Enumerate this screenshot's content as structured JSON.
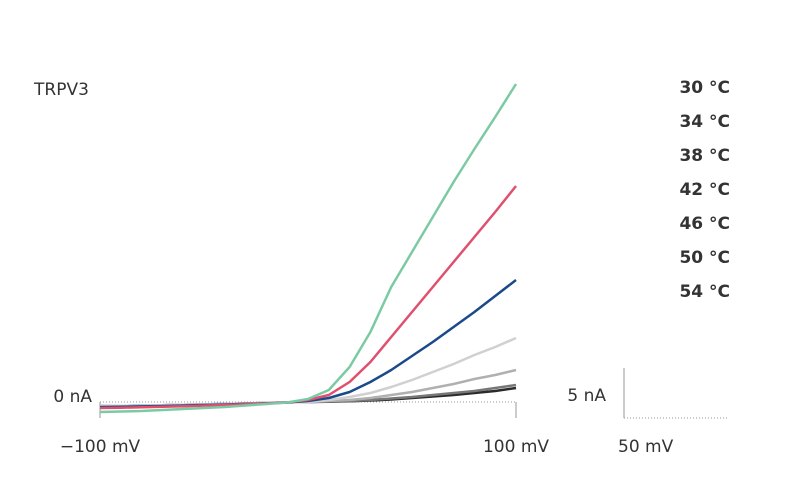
{
  "chart_data": {
    "type": "line",
    "title": "TRPV3",
    "x": [
      -100,
      -90,
      -80,
      -70,
      -60,
      -50,
      -40,
      -30,
      -20,
      -10,
      0,
      10,
      20,
      30,
      40,
      50,
      60,
      70,
      80,
      90,
      100
    ],
    "series": [
      {
        "name": "30 °C",
        "color": "#2b2b2b",
        "values": [
          -0.4,
          -0.38,
          -0.35,
          -0.32,
          -0.28,
          -0.24,
          -0.2,
          -0.15,
          -0.1,
          -0.04,
          0,
          0.03,
          0.08,
          0.15,
          0.25,
          0.4,
          0.55,
          0.7,
          0.9,
          1.1,
          1.4
        ]
      },
      {
        "name": "34 °C",
        "color": "#777777",
        "values": [
          -0.4,
          -0.38,
          -0.35,
          -0.32,
          -0.28,
          -0.24,
          -0.2,
          -0.15,
          -0.1,
          -0.04,
          0,
          0.05,
          0.1,
          0.2,
          0.35,
          0.5,
          0.7,
          0.9,
          1.1,
          1.4,
          1.7
        ]
      },
      {
        "name": "38 °C",
        "color": "#b0b0b0",
        "values": [
          -0.4,
          -0.38,
          -0.35,
          -0.32,
          -0.28,
          -0.24,
          -0.2,
          -0.15,
          -0.1,
          -0.04,
          0,
          0.1,
          0.2,
          0.4,
          0.7,
          1.0,
          1.4,
          1.8,
          2.3,
          2.7,
          3.2
        ]
      },
      {
        "name": "42 °C",
        "color": "#d0d0d0",
        "values": [
          -0.4,
          -0.38,
          -0.35,
          -0.32,
          -0.28,
          -0.24,
          -0.2,
          -0.15,
          -0.1,
          -0.04,
          0,
          0.2,
          0.5,
          0.9,
          1.5,
          2.2,
          3.0,
          3.8,
          4.7,
          5.5,
          6.4
        ]
      },
      {
        "name": "46 °C",
        "color": "#1a4a8a",
        "values": [
          -0.5,
          -0.47,
          -0.44,
          -0.4,
          -0.35,
          -0.3,
          -0.25,
          -0.19,
          -0.12,
          -0.05,
          0.1,
          0.4,
          1.0,
          2.0,
          3.2,
          4.6,
          6.0,
          7.5,
          9.0,
          10.6,
          12.2
        ]
      },
      {
        "name": "50 °C",
        "color": "#e0506e",
        "values": [
          -0.6,
          -0.57,
          -0.53,
          -0.48,
          -0.42,
          -0.36,
          -0.3,
          -0.22,
          -0.14,
          -0.05,
          0.2,
          0.7,
          2.0,
          4.0,
          6.5,
          9.0,
          11.5,
          14.0,
          16.5,
          19.0,
          21.6
        ]
      },
      {
        "name": "54 °C",
        "color": "#7ccaa4",
        "values": [
          -1.0,
          -0.95,
          -0.9,
          -0.8,
          -0.7,
          -0.6,
          -0.5,
          -0.35,
          -0.2,
          -0.05,
          0.3,
          1.2,
          3.5,
          7.0,
          11.5,
          15.0,
          18.5,
          22.0,
          25.3,
          28.5,
          31.8
        ]
      }
    ],
    "xlim": [
      -100,
      100
    ],
    "ylim": [
      -1.6,
      32
    ],
    "xticks": [
      {
        "value": -100,
        "label": "−100 mV"
      },
      {
        "value": 100,
        "label": "100 mV"
      }
    ],
    "yticks": [
      {
        "value": 0,
        "label": "0 nA"
      }
    ],
    "scale_bars": {
      "y": {
        "value": 5,
        "label": "5 nA"
      },
      "x": {
        "value": 50,
        "label": "50 mV"
      }
    },
    "legend": "right"
  }
}
